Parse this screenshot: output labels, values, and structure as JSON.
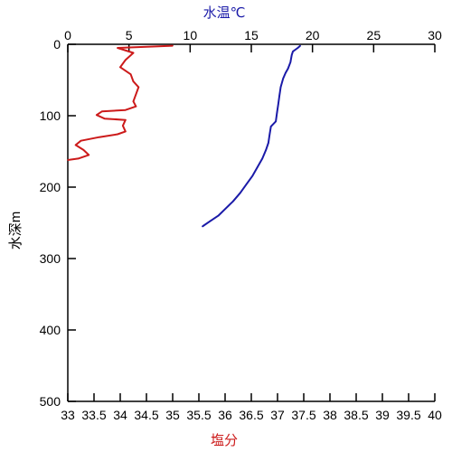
{
  "chart_data": {
    "type": "line",
    "y_axis": {
      "label": "水深m",
      "range": [
        0,
        500
      ],
      "ticks": [
        0,
        100,
        200,
        300,
        400,
        500
      ],
      "tick_labels": [
        "0",
        "100",
        "200",
        "300",
        "400",
        "500"
      ],
      "inverted": true
    },
    "x_axis_top": {
      "label": "水温℃",
      "range": [
        0,
        30
      ],
      "ticks": [
        0,
        5,
        10,
        15,
        20,
        25,
        30
      ],
      "tick_labels": [
        "0",
        "5",
        "10",
        "15",
        "20",
        "25",
        "30"
      ],
      "label_color": "#1a1aa8"
    },
    "x_axis_bottom": {
      "label": "塩分",
      "range": [
        33,
        40
      ],
      "ticks": [
        33,
        33.5,
        34,
        34.5,
        35,
        35.5,
        36,
        36.5,
        37,
        37.5,
        38,
        38.5,
        39,
        39.5,
        40
      ],
      "tick_labels": [
        "33",
        "33.5",
        "34",
        "34.5",
        "35",
        "35.5",
        "36",
        "36.5",
        "37",
        "37.5",
        "38",
        "38.5",
        "39",
        "39.5",
        "40"
      ],
      "label_color": "#cc1a1a"
    },
    "series": [
      {
        "axis": "top",
        "color": "#1a1aa8",
        "points": [
          [
            11.0,
            255
          ],
          [
            11.6,
            248
          ],
          [
            12.3,
            240
          ],
          [
            12.9,
            230
          ],
          [
            13.5,
            220
          ],
          [
            14.1,
            208
          ],
          [
            14.6,
            196
          ],
          [
            15.1,
            184
          ],
          [
            15.5,
            172
          ],
          [
            15.9,
            160
          ],
          [
            16.2,
            148
          ],
          [
            16.4,
            138
          ],
          [
            16.5,
            126
          ],
          [
            16.6,
            115
          ],
          [
            17.0,
            108
          ],
          [
            17.1,
            96
          ],
          [
            17.2,
            84
          ],
          [
            17.3,
            72
          ],
          [
            17.4,
            60
          ],
          [
            17.6,
            48
          ],
          [
            17.8,
            40
          ],
          [
            18.0,
            34
          ],
          [
            18.2,
            25
          ],
          [
            18.3,
            15
          ],
          [
            18.4,
            10
          ],
          [
            18.8,
            5
          ],
          [
            19.0,
            2
          ]
        ]
      },
      {
        "axis": "bottom",
        "color": "#cc1a1a",
        "points": [
          [
            33.0,
            162
          ],
          [
            33.2,
            160
          ],
          [
            33.4,
            155
          ],
          [
            33.3,
            148
          ],
          [
            33.15,
            141
          ],
          [
            33.25,
            135
          ],
          [
            33.6,
            130
          ],
          [
            33.95,
            126
          ],
          [
            34.1,
            122
          ],
          [
            34.05,
            114
          ],
          [
            34.1,
            106
          ],
          [
            33.7,
            104
          ],
          [
            33.55,
            99
          ],
          [
            33.65,
            94
          ],
          [
            34.1,
            92
          ],
          [
            34.3,
            87
          ],
          [
            34.25,
            80
          ],
          [
            34.3,
            70
          ],
          [
            34.35,
            60
          ],
          [
            34.25,
            52
          ],
          [
            34.2,
            42
          ],
          [
            34.0,
            32
          ],
          [
            34.1,
            22
          ],
          [
            34.25,
            12
          ],
          [
            33.95,
            5
          ],
          [
            35.0,
            2
          ]
        ]
      }
    ]
  }
}
